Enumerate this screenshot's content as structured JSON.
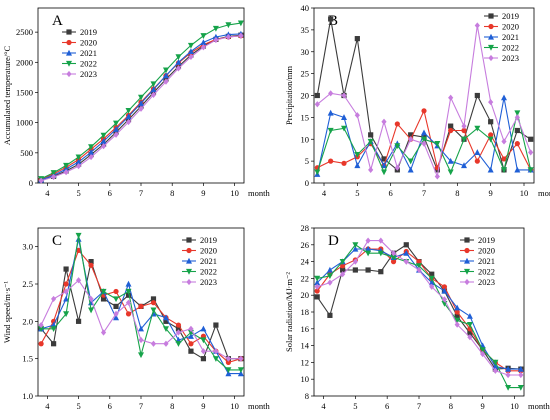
{
  "chart_data": [
    {
      "type": "line",
      "panel": "A",
      "ylabel": "Accumulated temperature/°C",
      "xlabel": "month",
      "x_ticks": [
        4,
        5,
        6,
        7,
        8,
        9,
        10
      ],
      "xlim": [
        3.7,
        10.3
      ],
      "y_ticks": [
        0,
        500,
        1000,
        1500,
        2000,
        2500
      ],
      "ylim": [
        0,
        2900
      ],
      "legend_position": "top-left",
      "x": [
        3.8,
        4.2,
        4.6,
        5.0,
        5.4,
        5.8,
        6.2,
        6.6,
        7.0,
        7.4,
        7.8,
        8.2,
        8.6,
        9.0,
        9.4,
        9.8,
        10.2
      ],
      "series": [
        {
          "name": "2019",
          "marker": "square",
          "values": [
            40,
            110,
            200,
            310,
            470,
            640,
            840,
            1050,
            1270,
            1500,
            1720,
            1930,
            2120,
            2270,
            2380,
            2430,
            2450
          ]
        },
        {
          "name": "2020",
          "marker": "circle",
          "values": [
            60,
            150,
            260,
            390,
            560,
            730,
            920,
            1120,
            1340,
            1560,
            1780,
            1990,
            2160,
            2290,
            2380,
            2420,
            2440
          ]
        },
        {
          "name": "2021",
          "marker": "triangle-up",
          "values": [
            50,
            130,
            230,
            350,
            510,
            690,
            890,
            1100,
            1320,
            1550,
            1780,
            2000,
            2180,
            2330,
            2420,
            2460,
            2470
          ]
        },
        {
          "name": "2022",
          "marker": "triangle-down",
          "values": [
            70,
            170,
            290,
            430,
            600,
            790,
            990,
            1200,
            1420,
            1640,
            1870,
            2090,
            2280,
            2440,
            2560,
            2620,
            2650
          ]
        },
        {
          "name": "2023",
          "marker": "diamond",
          "values": [
            40,
            100,
            180,
            280,
            430,
            610,
            800,
            1010,
            1230,
            1460,
            1680,
            1900,
            2090,
            2250,
            2370,
            2420,
            2440
          ]
        }
      ]
    },
    {
      "type": "line",
      "panel": "B",
      "ylabel": "Precipitation/mm",
      "xlabel": "month",
      "x_ticks": [
        4,
        5,
        6,
        7,
        8,
        9,
        10
      ],
      "xlim": [
        3.7,
        10.3
      ],
      "y_ticks": [
        0,
        5,
        10,
        15,
        20,
        25,
        30,
        35,
        40
      ],
      "ylim": [
        0,
        40
      ],
      "legend_position": "top-right",
      "x": [
        3.8,
        4.2,
        4.6,
        5.0,
        5.4,
        5.8,
        6.2,
        6.6,
        7.0,
        7.4,
        7.8,
        8.2,
        8.6,
        9.0,
        9.4,
        9.8,
        10.2
      ],
      "series": [
        {
          "name": "2019",
          "marker": "square",
          "values": [
            20,
            37.5,
            20,
            33,
            11,
            5.5,
            3,
            11,
            10.5,
            3,
            13,
            10,
            20,
            14,
            3,
            12,
            10
          ]
        },
        {
          "name": "2020",
          "marker": "circle",
          "values": [
            3.5,
            5,
            4.5,
            6,
            9,
            4,
            13.5,
            10,
            16.5,
            3.5,
            12,
            12,
            5,
            11,
            5.5,
            9,
            3
          ]
        },
        {
          "name": "2021",
          "marker": "triangle-up",
          "values": [
            2,
            16,
            15,
            4,
            9.5,
            4,
            9,
            3,
            11.5,
            8.5,
            5,
            4,
            7,
            3,
            19.5,
            3,
            3
          ]
        },
        {
          "name": "2022",
          "marker": "triangle-down",
          "values": [
            2.5,
            12,
            12.5,
            6.5,
            9.5,
            2.5,
            8.5,
            5,
            10,
            9,
            2.5,
            10,
            12.5,
            10,
            3,
            16,
            3
          ]
        },
        {
          "name": "2023",
          "marker": "diamond",
          "values": [
            18,
            20.5,
            20,
            15.5,
            3,
            14,
            3.5,
            10,
            9,
            1.5,
            19.5,
            13,
            36,
            18.5,
            9.5,
            15,
            7
          ]
        }
      ]
    },
    {
      "type": "line",
      "panel": "C",
      "ylabel": "Wind speed/m·s⁻¹",
      "xlabel": "month",
      "x_ticks": [
        4,
        5,
        6,
        7,
        8,
        9,
        10
      ],
      "xlim": [
        3.7,
        10.3
      ],
      "y_ticks": [
        1.0,
        1.5,
        2.0,
        2.5,
        3.0
      ],
      "ylim": [
        1.0,
        3.25
      ],
      "legend_position": "top-right",
      "x": [
        3.8,
        4.2,
        4.6,
        5.0,
        5.4,
        5.8,
        6.2,
        6.6,
        7.0,
        7.4,
        7.8,
        8.2,
        8.6,
        9.0,
        9.4,
        9.8,
        10.2
      ],
      "series": [
        {
          "name": "2019",
          "marker": "square",
          "values": [
            1.9,
            1.7,
            2.7,
            2.0,
            2.8,
            2.3,
            2.2,
            2.35,
            2.2,
            2.3,
            2.0,
            1.9,
            1.6,
            1.5,
            1.95,
            1.5,
            1.5
          ]
        },
        {
          "name": "2020",
          "marker": "circle",
          "values": [
            1.7,
            2.0,
            2.5,
            2.95,
            2.75,
            2.35,
            2.4,
            2.1,
            2.2,
            2.25,
            2.05,
            1.95,
            1.7,
            1.8,
            1.6,
            1.45,
            1.5
          ]
        },
        {
          "name": "2021",
          "marker": "triangle-up",
          "values": [
            1.9,
            1.95,
            2.3,
            3.1,
            2.25,
            2.4,
            2.05,
            2.5,
            1.9,
            2.1,
            2.05,
            1.75,
            1.8,
            1.9,
            1.6,
            1.3,
            1.3
          ]
        },
        {
          "name": "2022",
          "marker": "triangle-down",
          "values": [
            1.9,
            1.9,
            2.1,
            3.15,
            2.15,
            2.4,
            2.3,
            2.4,
            1.55,
            2.15,
            1.9,
            1.7,
            1.85,
            1.75,
            1.5,
            1.35,
            1.35
          ]
        },
        {
          "name": "2023",
          "marker": "diamond",
          "values": [
            1.95,
            2.3,
            2.4,
            2.55,
            2.3,
            1.85,
            2.1,
            2.25,
            1.75,
            1.7,
            1.7,
            1.85,
            1.9,
            1.6,
            1.6,
            1.5,
            1.5
          ]
        }
      ]
    },
    {
      "type": "line",
      "panel": "D",
      "ylabel": "Solar radiation/MJ·m⁻²",
      "xlabel": "month",
      "x_ticks": [
        4,
        5,
        6,
        7,
        8,
        9,
        10
      ],
      "xlim": [
        3.7,
        10.3
      ],
      "y_ticks": [
        8,
        10,
        12,
        14,
        16,
        18,
        20,
        22,
        24,
        26,
        28
      ],
      "ylim": [
        8,
        28
      ],
      "legend_position": "top-right",
      "x": [
        3.8,
        4.2,
        4.6,
        5.0,
        5.4,
        5.8,
        6.2,
        6.6,
        7.0,
        7.4,
        7.8,
        8.2,
        8.6,
        9.0,
        9.4,
        9.8,
        10.2
      ],
      "series": [
        {
          "name": "2019",
          "marker": "square",
          "values": [
            19.8,
            17.6,
            23.0,
            23.0,
            23.0,
            22.8,
            25.0,
            26.0,
            24.0,
            22.5,
            20.5,
            17.5,
            15.5,
            13.5,
            11.2,
            11.3,
            11.2
          ]
        },
        {
          "name": "2020",
          "marker": "circle",
          "values": [
            20.5,
            22.5,
            23.5,
            24.2,
            25.5,
            25.5,
            24.0,
            25.2,
            24.0,
            22.0,
            21.0,
            18.0,
            16.0,
            13.5,
            12.0,
            11.0,
            11.0
          ]
        },
        {
          "name": "2021",
          "marker": "triangle-up",
          "values": [
            21.5,
            23.0,
            24.0,
            25.5,
            25.5,
            25.3,
            24.5,
            25.0,
            23.0,
            21.5,
            20.5,
            18.5,
            17.5,
            14.0,
            11.5,
            11.2,
            11.2
          ]
        },
        {
          "name": "2022",
          "marker": "triangle-down",
          "values": [
            22.0,
            22.3,
            24.0,
            26.0,
            25.0,
            25.0,
            24.5,
            24.0,
            23.5,
            22.0,
            19.0,
            17.0,
            16.5,
            13.5,
            12.0,
            9.0,
            9.0
          ]
        },
        {
          "name": "2023",
          "marker": "diamond",
          "values": [
            21.0,
            21.5,
            22.5,
            24.0,
            26.5,
            26.5,
            25.0,
            24.0,
            23.0,
            21.0,
            19.5,
            16.5,
            15.0,
            13.0,
            11.0,
            10.5,
            10.5
          ]
        }
      ]
    }
  ],
  "colors": {
    "2019": "#3b3b3b",
    "2020": "#e8372a",
    "2021": "#1f5fd6",
    "2022": "#16a34a",
    "2023": "#c77dde"
  }
}
